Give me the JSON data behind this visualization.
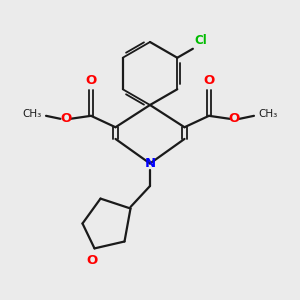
{
  "background_color": "#ebebeb",
  "bond_color": "#1a1a1a",
  "N_color": "#0000ff",
  "O_color": "#ff0000",
  "Cl_color": "#00bb00",
  "figsize": [
    3.0,
    3.0
  ],
  "dpi": 100,
  "xlim": [
    0,
    10
  ],
  "ylim": [
    0,
    10
  ]
}
